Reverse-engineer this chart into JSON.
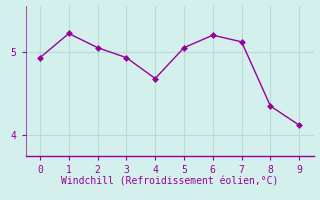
{
  "x": [
    0,
    1,
    2,
    3,
    4,
    5,
    6,
    7,
    8,
    9
  ],
  "y": [
    4.93,
    5.22,
    5.05,
    4.93,
    4.68,
    5.05,
    5.2,
    5.12,
    4.35,
    4.12
  ],
  "line_color": "#990099",
  "marker_color": "#990099",
  "bg_color": "#d4f0ec",
  "grid_color": "#b8ddd8",
  "xlabel": "Windchill (Refroidissement éolien,°C)",
  "xlabel_color": "#990099",
  "tick_color": "#990099",
  "spine_color": "#990099",
  "xlim": [
    -0.5,
    9.5
  ],
  "ylim": [
    3.75,
    5.55
  ],
  "yticks": [
    4,
    5
  ],
  "xticks": [
    0,
    1,
    2,
    3,
    4,
    5,
    6,
    7,
    8,
    9
  ],
  "font_size": 7,
  "xlabel_fontsize": 7,
  "marker_size": 3,
  "line_width": 1.0
}
